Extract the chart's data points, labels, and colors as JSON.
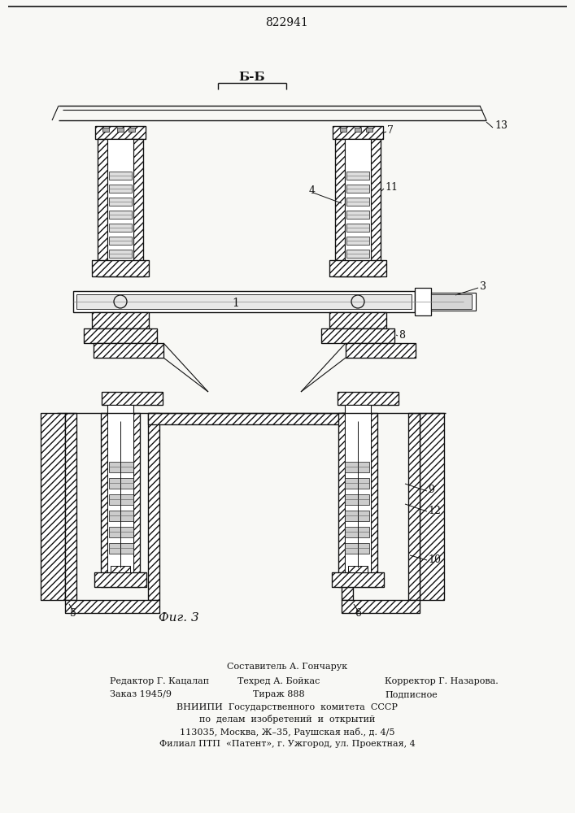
{
  "title": "822941",
  "section_label": "Б-Б",
  "fig_label": "Фиг. 3",
  "bottom_text_line1": "Составитель А. Гончарук",
  "bottom_text_line2_left": "Редактор Г. Кацалап",
  "bottom_text_line2_mid": "Техред А. Бойкас",
  "bottom_text_line2_right": "Корректор Г. Назарова.",
  "bottom_text_line3_left": "Заказ 1945/9",
  "bottom_text_line3_mid": "Тираж 888",
  "bottom_text_line3_right": "Подписное",
  "bottom_text_line4": "ВНИИПИ  Государственного  комитета  СССР",
  "bottom_text_line5": "по  делам  изобретений  и  открытий",
  "bottom_text_line6": "113035, Москва, Ж–35, Раушская наб., д. 4/5",
  "bottom_text_line7": "Филиал ПТП  «Патент», г. Ужгород, ул. Проектная, 4",
  "bg_color": "#f8f8f5",
  "line_color": "#111111"
}
